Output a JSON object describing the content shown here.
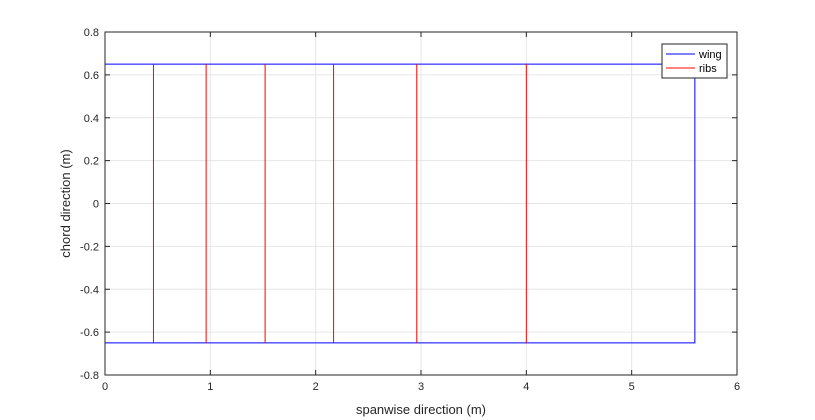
{
  "chart_data": {
    "type": "line",
    "title": "",
    "xlabel": "spanwise direction (m)",
    "ylabel": "chord direction (m)",
    "xlim": [
      0,
      6
    ],
    "ylim": [
      -0.8,
      0.8
    ],
    "xticks": [
      0,
      1,
      2,
      3,
      4,
      5,
      6
    ],
    "yticks": [
      -0.8,
      -0.6,
      -0.4,
      -0.2,
      0,
      0.2,
      0.4,
      0.6,
      0.8
    ],
    "xtick_labels": [
      "0",
      "1",
      "2",
      "3",
      "4",
      "5",
      "6"
    ],
    "ytick_labels": [
      "-0.8",
      "-0.6",
      "-0.4",
      "-0.2",
      "0",
      "0.2",
      "0.4",
      "0.6",
      "0.8"
    ],
    "grid": true,
    "legend_position": "top-right",
    "series": [
      {
        "name": "wing",
        "color": "#0000ff",
        "x": [
          0,
          5.6,
          5.6,
          0,
          0
        ],
        "y": [
          0.65,
          0.65,
          -0.65,
          -0.65,
          0.65
        ]
      },
      {
        "name": "ribs",
        "color": "#ff0000",
        "segments": [
          {
            "x": 0.0,
            "y": [
              -0.65,
              0.65
            ]
          },
          {
            "x": 0.46,
            "y": [
              -0.65,
              0.65
            ]
          },
          {
            "x": 0.96,
            "y": [
              -0.65,
              0.65
            ]
          },
          {
            "x": 1.52,
            "y": [
              -0.65,
              0.65
            ]
          },
          {
            "x": 2.17,
            "y": [
              -0.65,
              0.65
            ]
          },
          {
            "x": 2.96,
            "y": [
              -0.65,
              0.65
            ]
          },
          {
            "x": 4.0,
            "y": [
              -0.65,
              0.65
            ]
          }
        ]
      }
    ]
  }
}
